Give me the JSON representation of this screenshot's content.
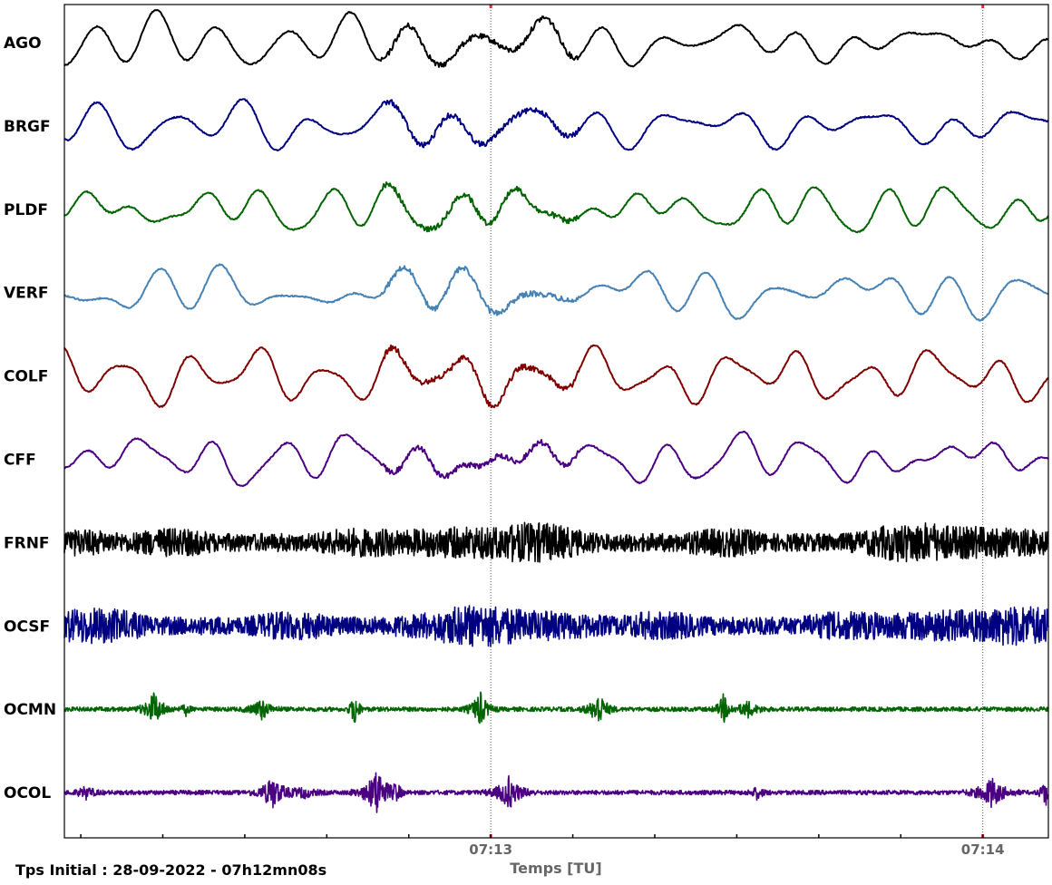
{
  "chart_data": {
    "type": "line",
    "xlabel": "Temps [TU]",
    "xlim": [
      "07:12:08",
      "07:14:08"
    ],
    "major_ticks": [
      "07:13",
      "07:14"
    ],
    "minor_tick_interval_s": 10,
    "grid": "dotted vertical lines at major ticks",
    "stations": [
      {
        "name": "AGO",
        "color": "#000000",
        "character": "low-frequency"
      },
      {
        "name": "BRGF",
        "color": "#000080",
        "character": "low-frequency"
      },
      {
        "name": "PLDF",
        "color": "#006400",
        "character": "low-frequency"
      },
      {
        "name": "VERF",
        "color": "#4682b4",
        "character": "low-frequency"
      },
      {
        "name": "COLF",
        "color": "#800000",
        "character": "low-frequency"
      },
      {
        "name": "CFF",
        "color": "#4b0082",
        "character": "low-frequency"
      },
      {
        "name": "FRNF",
        "color": "#000000",
        "character": "high-frequency"
      },
      {
        "name": "OCSF",
        "color": "#000080",
        "character": "high-frequency"
      },
      {
        "name": "OCMN",
        "color": "#006400",
        "character": "spiky"
      },
      {
        "name": "OCOL",
        "color": "#4b0082",
        "character": "spiky"
      }
    ]
  },
  "footer": {
    "initial_time": "Tps Initial : 28-09-2022 - 07h12mn08s"
  }
}
